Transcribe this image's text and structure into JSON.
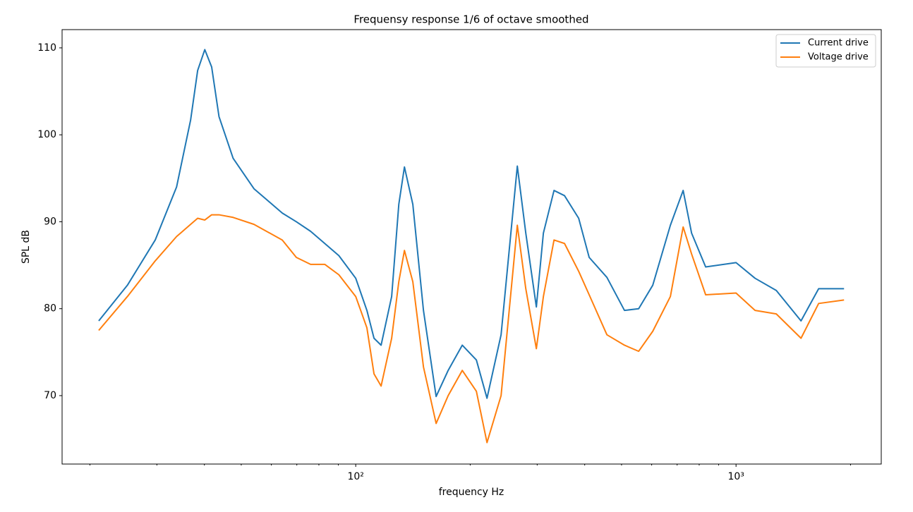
{
  "chart_data": {
    "type": "line",
    "title": "Frequensy response 1/6 of octave smoothed",
    "xlabel": "frequency Hz",
    "ylabel": "SPL dB",
    "xscale": "log",
    "xlim": [
      16.9,
      2409
    ],
    "ylim": [
      62.13,
      112.1
    ],
    "xticks": [
      {
        "value": 100,
        "label": "10²"
      },
      {
        "value": 1000,
        "label": "10³"
      }
    ],
    "xminorticks": [
      20,
      30,
      40,
      50,
      60,
      70,
      80,
      90,
      200,
      300,
      400,
      500,
      600,
      700,
      800,
      900,
      2000
    ],
    "yticks": [
      70,
      80,
      90,
      100,
      110
    ],
    "grid": false,
    "legend": "upper right",
    "x": [
      21.1,
      25.1,
      29.7,
      33.8,
      36.8,
      38.4,
      40.1,
      41.8,
      43.7,
      47.6,
      54,
      64.1,
      69.8,
      76.1,
      82.9,
      90.3,
      100,
      107,
      111.7,
      116.6,
      124.3,
      129.8,
      134.3,
      141.3,
      150.7,
      162.7,
      175,
      190.6,
      207.6,
      221.4,
      241.1,
      266,
      280,
      298.5,
      311.5,
      332.2,
      354,
      385.7,
      411,
      457.6,
      509,
      554.6,
      604,
      672,
      726,
      764,
      832,
      1000,
      1122,
      1276,
      1482,
      1649,
      1923
    ],
    "series": [
      {
        "name": "Current drive",
        "color": "#1f77b4",
        "values": [
          78.6,
          82.7,
          87.9,
          94.0,
          101.7,
          107.4,
          109.8,
          107.8,
          102.1,
          97.3,
          93.8,
          91.0,
          90.0,
          88.9,
          87.5,
          86.1,
          83.5,
          79.8,
          76.6,
          75.8,
          81.4,
          92.0,
          96.3,
          92.0,
          79.8,
          69.9,
          72.9,
          75.8,
          74.1,
          69.7,
          77.0,
          96.4,
          88.7,
          80.2,
          88.7,
          93.6,
          93.0,
          90.4,
          85.9,
          83.6,
          79.8,
          80.0,
          82.7,
          89.6,
          93.6,
          88.7,
          84.8,
          85.3,
          83.5,
          82.1,
          78.6,
          82.3,
          82.3
        ]
      },
      {
        "name": "Voltage drive",
        "color": "#ff7f0e",
        "values": [
          77.5,
          81.4,
          85.5,
          88.3,
          89.7,
          90.4,
          90.2,
          90.8,
          90.8,
          90.5,
          89.7,
          87.9,
          85.9,
          85.1,
          85.1,
          83.9,
          81.4,
          77.8,
          72.5,
          71.1,
          76.6,
          83.1,
          86.7,
          83.1,
          73.3,
          66.8,
          70.0,
          72.9,
          70.5,
          64.6,
          70.0,
          89.6,
          82.3,
          75.4,
          81.4,
          87.9,
          87.5,
          84.3,
          81.6,
          77.0,
          75.8,
          75.1,
          77.4,
          81.4,
          89.4,
          86.3,
          81.6,
          81.8,
          79.8,
          79.4,
          76.6,
          80.6,
          81.0
        ]
      }
    ]
  }
}
